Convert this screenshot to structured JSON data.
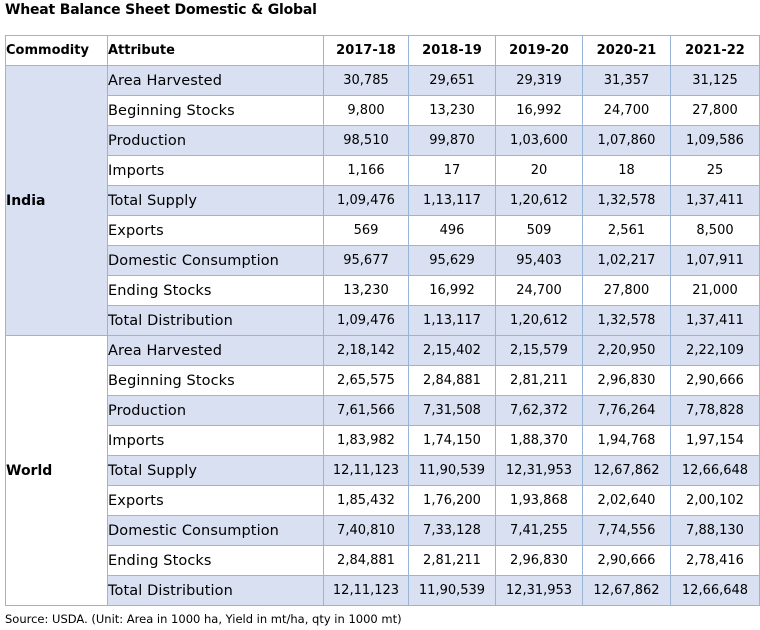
{
  "title": "Wheat Balance Sheet Domestic & Global",
  "columns": {
    "commodity": "Commodity",
    "attribute": "Attribute",
    "years": [
      "2017-18",
      "2018-19",
      "2019-20",
      "2020-21",
      "2021-22"
    ]
  },
  "groups": [
    {
      "commodity": "India",
      "rows": [
        {
          "attribute": "Area Harvested",
          "values": [
            "30,785",
            "29,651",
            "29,319",
            "31,357",
            "31,125"
          ]
        },
        {
          "attribute": "Beginning Stocks",
          "values": [
            "9,800",
            "13,230",
            "16,992",
            "24,700",
            "27,800"
          ]
        },
        {
          "attribute": "Production",
          "values": [
            "98,510",
            "99,870",
            "1,03,600",
            "1,07,860",
            "1,09,586"
          ]
        },
        {
          "attribute": "Imports",
          "values": [
            "1,166",
            "17",
            "20",
            "18",
            "25"
          ]
        },
        {
          "attribute": "Total Supply",
          "values": [
            "1,09,476",
            "1,13,117",
            "1,20,612",
            "1,32,578",
            "1,37,411"
          ]
        },
        {
          "attribute": "Exports",
          "values": [
            "569",
            "496",
            "509",
            "2,561",
            "8,500"
          ]
        },
        {
          "attribute": "Domestic Consumption",
          "values": [
            "95,677",
            "95,629",
            "95,403",
            "1,02,217",
            "1,07,911"
          ]
        },
        {
          "attribute": "Ending Stocks",
          "values": [
            "13,230",
            "16,992",
            "24,700",
            "27,800",
            "21,000"
          ]
        },
        {
          "attribute": "Total Distribution",
          "values": [
            "1,09,476",
            "1,13,117",
            "1,20,612",
            "1,32,578",
            "1,37,411"
          ]
        }
      ]
    },
    {
      "commodity": "World",
      "rows": [
        {
          "attribute": "Area Harvested",
          "values": [
            "2,18,142",
            "2,15,402",
            "2,15,579",
            "2,20,950",
            "2,22,109"
          ]
        },
        {
          "attribute": "Beginning Stocks",
          "values": [
            "2,65,575",
            "2,84,881",
            "2,81,211",
            "2,96,830",
            "2,90,666"
          ]
        },
        {
          "attribute": "Production",
          "values": [
            "7,61,566",
            "7,31,508",
            "7,62,372",
            "7,76,264",
            "7,78,828"
          ]
        },
        {
          "attribute": "Imports",
          "values": [
            "1,83,982",
            "1,74,150",
            "1,88,370",
            "1,94,768",
            "1,97,154"
          ]
        },
        {
          "attribute": "Total Supply",
          "values": [
            "12,11,123",
            "11,90,539",
            "12,31,953",
            "12,67,862",
            "12,66,648"
          ]
        },
        {
          "attribute": "Exports",
          "values": [
            "1,85,432",
            "1,76,200",
            "1,93,868",
            "2,02,640",
            "2,00,102"
          ]
        },
        {
          "attribute": "Domestic Consumption",
          "values": [
            "7,40,810",
            "7,33,128",
            "7,41,255",
            "7,74,556",
            "7,88,130"
          ]
        },
        {
          "attribute": "Ending Stocks",
          "values": [
            "2,84,881",
            "2,81,211",
            "2,96,830",
            "2,90,666",
            "2,78,416"
          ]
        },
        {
          "attribute": "Total Distribution",
          "values": [
            "12,11,123",
            "11,90,539",
            "12,31,953",
            "12,67,862",
            "12,66,648"
          ]
        }
      ]
    }
  ],
  "colors": {
    "row_shade": "#d9e0f2",
    "border": "#9ab4d6"
  },
  "source": "Source: USDA. (Unit: Area in 1000 ha, Yield in mt/ha, qty in 1000 mt)"
}
